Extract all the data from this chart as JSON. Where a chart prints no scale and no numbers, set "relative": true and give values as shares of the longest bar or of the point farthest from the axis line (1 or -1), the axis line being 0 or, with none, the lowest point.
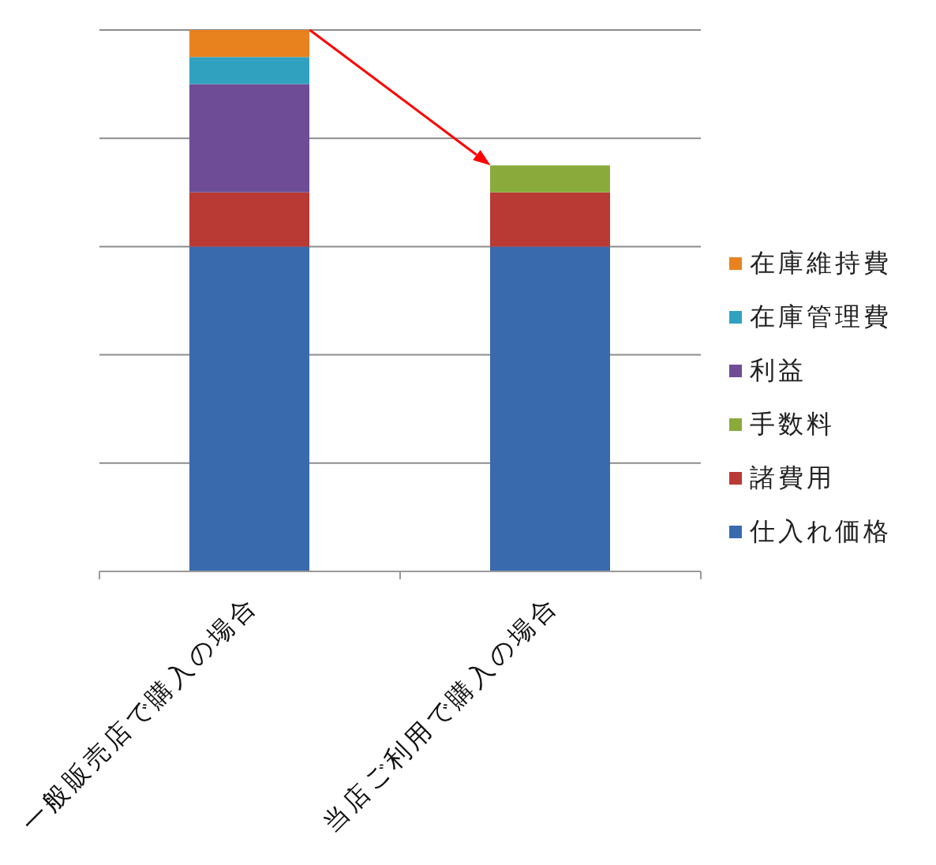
{
  "chart_data": {
    "type": "bar",
    "stacked": true,
    "relative": true,
    "categories": [
      "一般販売店で購入の場合",
      "当店ご利用で購入の場合"
    ],
    "series": [
      {
        "name": "仕入れ価格",
        "color": "#3a6aae",
        "values": [
          0.6,
          0.6
        ]
      },
      {
        "name": "諸費用",
        "color": "#b93a35",
        "values": [
          0.1,
          0.1
        ]
      },
      {
        "name": "手数料",
        "color": "#8aab3c",
        "values": [
          null,
          0.05
        ]
      },
      {
        "name": "利益",
        "color": "#6e4d96",
        "values": [
          0.2,
          null
        ]
      },
      {
        "name": "在庫管理費",
        "color": "#30a2bf",
        "values": [
          0.05,
          null
        ]
      },
      {
        "name": "在庫維持費",
        "color": "#e8821f",
        "values": [
          0.05,
          null
        ]
      }
    ],
    "grid": "y",
    "legend": "right"
  }
}
